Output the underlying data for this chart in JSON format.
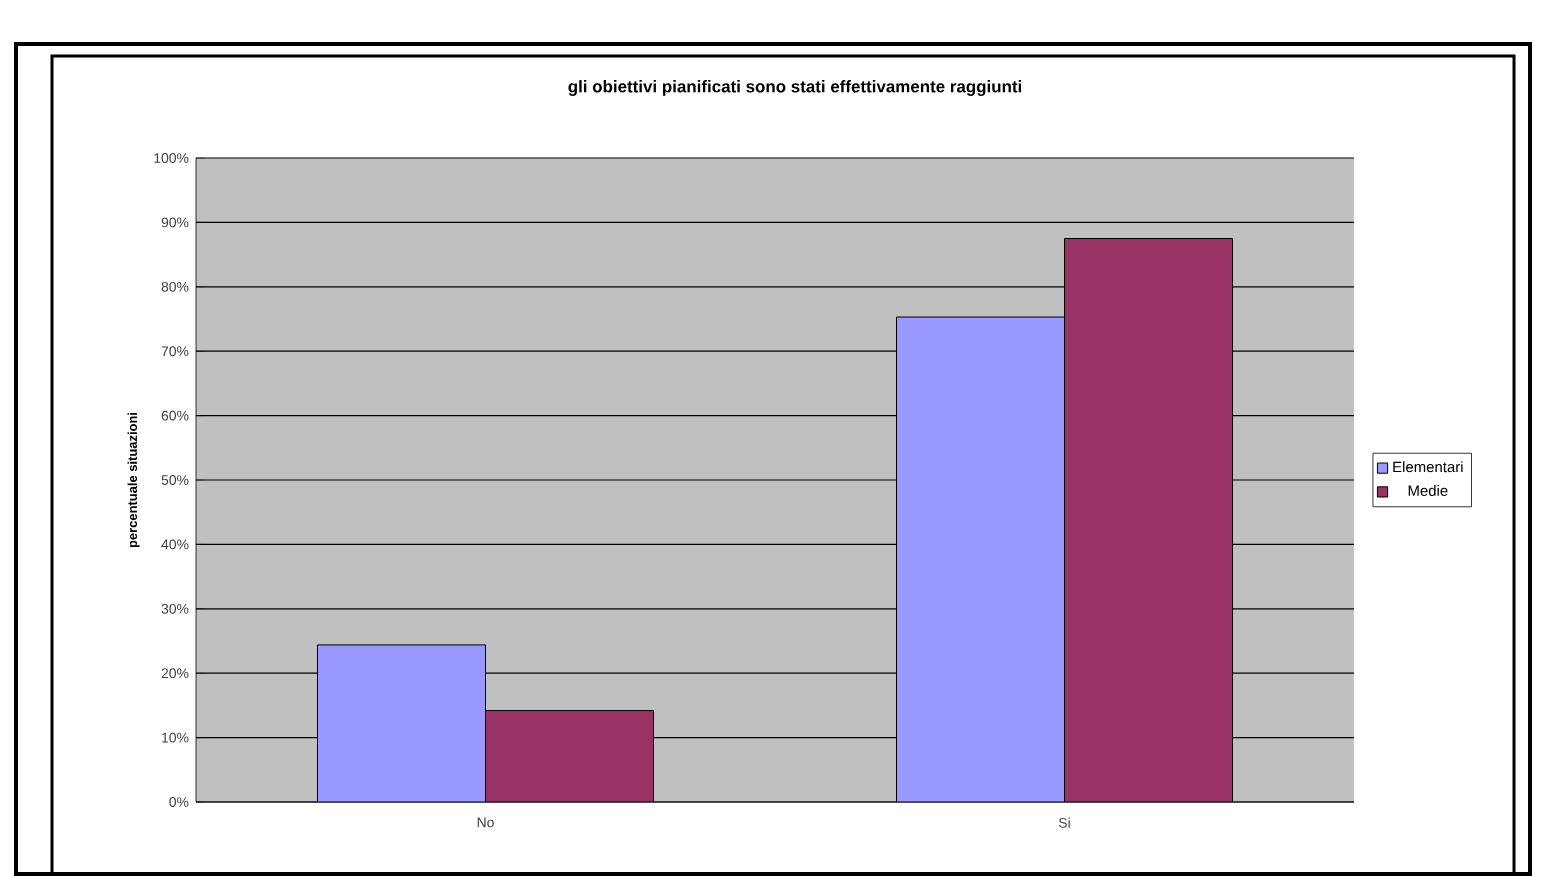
{
  "chart_data": {
    "type": "bar",
    "title": "gli obiettivi pianificati sono stati effettivamente raggiunti",
    "ylabel": "percentuale situazioni",
    "categories": [
      "No",
      "Si"
    ],
    "series": [
      {
        "name": "Elementari",
        "color": "#9999ff",
        "values": [
          24.4,
          75.3
        ]
      },
      {
        "name": "Medie",
        "color": "#993366",
        "values": [
          14.2,
          87.5
        ]
      }
    ],
    "ylim": [
      0,
      100
    ],
    "yticks": [
      {
        "value": 0,
        "label": "0%"
      },
      {
        "value": 10,
        "label": "10%"
      },
      {
        "value": 20,
        "label": "20%"
      },
      {
        "value": 30,
        "label": "30%"
      },
      {
        "value": 40,
        "label": "40%"
      },
      {
        "value": 50,
        "label": "50%"
      },
      {
        "value": 60,
        "label": "60%"
      },
      {
        "value": 70,
        "label": "70%"
      },
      {
        "value": 80,
        "label": "80%"
      },
      {
        "value": 90,
        "label": "90%"
      },
      {
        "value": 100,
        "label": "100%"
      }
    ],
    "grid": "y",
    "legend": "right"
  }
}
